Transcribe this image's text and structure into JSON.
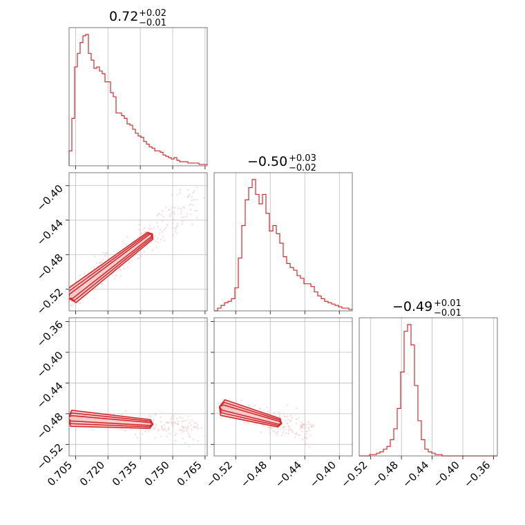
{
  "colors": {
    "primary": "#d62728",
    "fill": "#f4c6c8",
    "scatter": "#f2b9bb",
    "grid": "#bbbbbb",
    "frame": "#555555"
  },
  "chart_data": [
    {
      "type": "histogram",
      "panel": "diag-0",
      "title": {
        "median": "0.72",
        "plus": "+0.02",
        "minus": "−0.01"
      },
      "xlim": [
        0.702,
        0.766
      ],
      "xticks": [
        "0.705",
        "0.720",
        "0.735",
        "0.750",
        "0.765"
      ],
      "xtick_values": [
        0.705,
        0.72,
        0.735,
        0.75,
        0.765
      ],
      "bins": [
        0.702,
        0.766
      ],
      "counts": [
        0.11,
        0.35,
        0.73,
        0.83,
        0.91,
        0.96,
        0.97,
        0.83,
        0.78,
        0.72,
        0.73,
        0.7,
        0.68,
        0.62,
        0.62,
        0.54,
        0.51,
        0.39,
        0.39,
        0.37,
        0.35,
        0.31,
        0.3,
        0.27,
        0.24,
        0.22,
        0.21,
        0.18,
        0.16,
        0.14,
        0.13,
        0.11,
        0.11,
        0.1,
        0.08,
        0.07,
        0.06,
        0.05,
        0.06,
        0.04,
        0.03,
        0.03,
        0.03,
        0.02,
        0.02,
        0.02,
        0.02,
        0.01,
        0.01,
        0.01
      ]
    },
    {
      "type": "histogram",
      "panel": "diag-1",
      "title": {
        "median": "−0.50",
        "plus": "+0.03",
        "minus": "−0.02"
      },
      "xlim": [
        -0.545,
        -0.385
      ],
      "xticks": [
        "−0.52",
        "−0.48",
        "−0.44",
        "−0.40"
      ],
      "xtick_values": [
        -0.52,
        -0.48,
        -0.44,
        -0.4
      ],
      "bins": [
        -0.545,
        -0.385
      ],
      "counts": [
        0.0,
        0.02,
        0.04,
        0.06,
        0.07,
        0.09,
        0.17,
        0.39,
        0.63,
        0.82,
        0.91,
        0.97,
        0.86,
        0.79,
        0.86,
        0.72,
        0.59,
        0.63,
        0.57,
        0.5,
        0.4,
        0.35,
        0.32,
        0.3,
        0.26,
        0.24,
        0.2,
        0.2,
        0.18,
        0.14,
        0.11,
        0.09,
        0.07,
        0.06,
        0.05,
        0.04,
        0.03,
        0.02,
        0.02,
        0.01
      ]
    },
    {
      "type": "histogram",
      "panel": "diag-2",
      "title": {
        "median": "−0.49",
        "plus": "+0.01",
        "minus": "−0.01"
      },
      "xlim": [
        -0.535,
        -0.355
      ],
      "xticks": [
        "−0.52",
        "−0.48",
        "−0.44",
        "−0.40",
        "−0.36"
      ],
      "xtick_values": [
        -0.52,
        -0.48,
        -0.44,
        -0.4,
        -0.36
      ],
      "bins": [
        -0.535,
        -0.355
      ],
      "counts": [
        0.0,
        0.0,
        0.0,
        0.01,
        0.01,
        0.02,
        0.03,
        0.05,
        0.07,
        0.12,
        0.2,
        0.35,
        0.62,
        0.92,
        0.97,
        0.82,
        0.52,
        0.26,
        0.12,
        0.05,
        0.03,
        0.02,
        0.01,
        0.01,
        0.0,
        0.0,
        0.0,
        0.0,
        0.0,
        0.0,
        0.0,
        0.0,
        0.0,
        0.0,
        0.0,
        0.0,
        0.0,
        0.0,
        0.0,
        0.0
      ]
    },
    {
      "type": "scatter",
      "panel": "2d-1-0",
      "xlim": [
        0.702,
        0.766
      ],
      "ylim": [
        -0.545,
        -0.385
      ],
      "yticks": [
        "−0.52",
        "−0.48",
        "−0.44",
        "−0.40"
      ],
      "ytick_values": [
        -0.52,
        -0.48,
        -0.44,
        -0.4
      ],
      "relation": {
        "x_start": 0.703,
        "x_end": 0.762,
        "y_start": -0.528,
        "y_end": -0.415,
        "spread": 0.008
      },
      "contour_levels": [
        {
          "center": [
            0.708,
            -0.522
          ],
          "end": [
            0.728,
            -0.478
          ],
          "width": 0.012
        },
        {
          "center": [
            0.704,
            -0.527
          ],
          "end": [
            0.74,
            -0.458
          ],
          "width": 0.022
        },
        {
          "center": [
            0.703,
            -0.529
          ],
          "end": [
            0.742,
            -0.455
          ],
          "width": 0.032
        }
      ]
    },
    {
      "type": "scatter",
      "panel": "2d-2-0",
      "xlim": [
        0.702,
        0.766
      ],
      "ylim": [
        -0.535,
        -0.355
      ],
      "yticks": [
        "−0.36",
        "−0.40",
        "−0.44",
        "−0.48",
        "−0.52"
      ],
      "ytick_values": [
        -0.36,
        -0.4,
        -0.44,
        -0.48,
        -0.52
      ],
      "relation": {
        "x_start": 0.703,
        "x_end": 0.762,
        "y_start": -0.486,
        "y_end": -0.498,
        "spread": 0.006
      }
    },
    {
      "type": "scatter",
      "panel": "2d-2-1",
      "xlim": [
        -0.545,
        -0.385
      ],
      "ylim": [
        -0.535,
        -0.355
      ],
      "relation": {
        "x_start": -0.535,
        "x_end": -0.43,
        "y_start": -0.472,
        "y_end": -0.504,
        "spread": 0.006
      }
    }
  ]
}
